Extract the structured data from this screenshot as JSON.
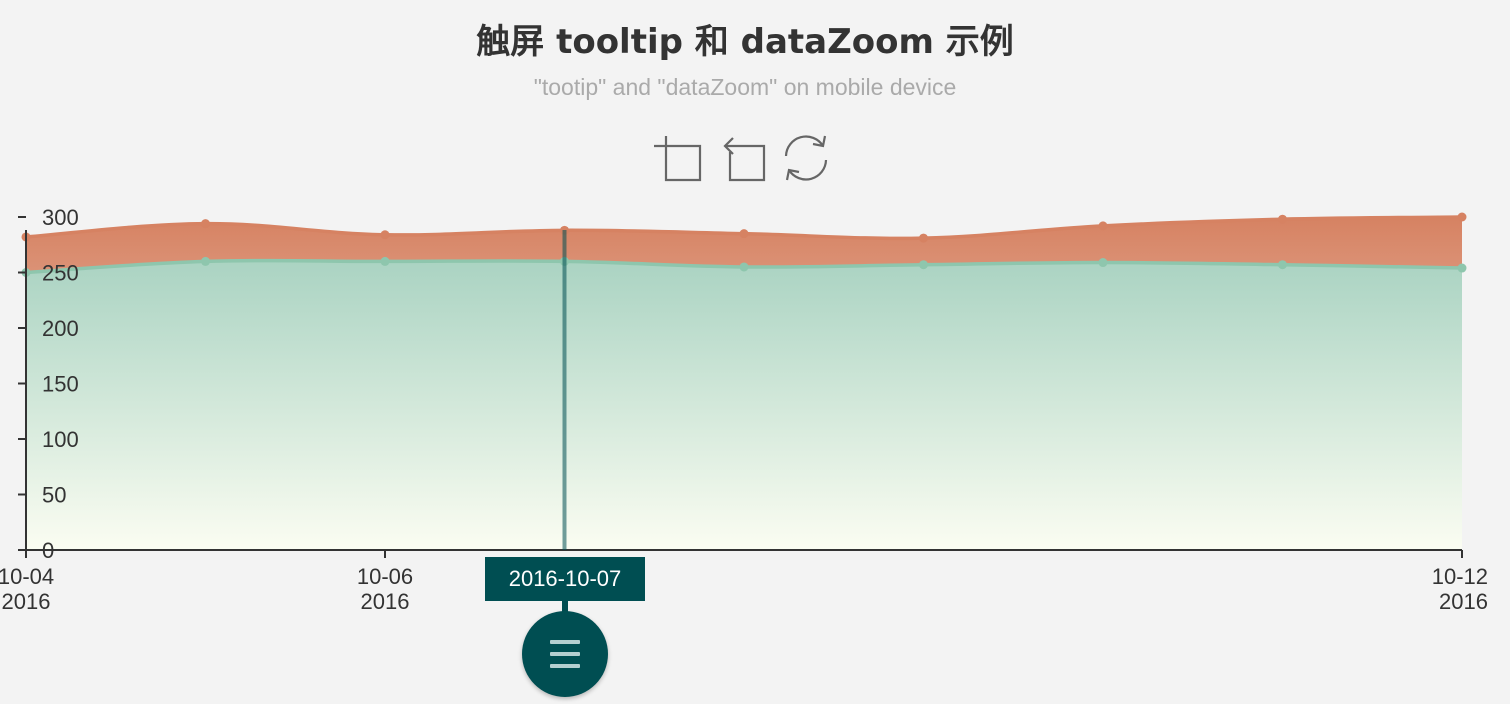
{
  "title": "触屏 tooltip 和 dataZoom 示例",
  "subtitle": "\"tootip\" and \"dataZoom\" on mobile device",
  "toolbox": [
    {
      "name": "data-zoom-icon"
    },
    {
      "name": "zoom-back-icon"
    },
    {
      "name": "restore-icon"
    }
  ],
  "tooltip": {
    "label": "2016-10-07",
    "x": "2016-10-07"
  },
  "colors": {
    "orange_line": "#d68262",
    "green_line": "#8ec6ad",
    "axis_pointer": "#004e52",
    "tooltip_bg": "#004e52"
  },
  "chart_data": {
    "type": "area",
    "title": "触屏 tooltip 和 dataZoom 示例",
    "subtitle": "\"tootip\" and \"dataZoom\" on mobile device",
    "x": [
      "2016-10-04",
      "2016-10-05",
      "2016-10-06",
      "2016-10-07",
      "2016-10-08",
      "2016-10-09",
      "2016-10-10",
      "2016-10-11",
      "2016-10-12"
    ],
    "series": [
      {
        "color": "#8ec6ad",
        "values": [
          250,
          260,
          260,
          260,
          255,
          257,
          259,
          257,
          254
        ]
      },
      {
        "color": "#d68262",
        "values": [
          282,
          294,
          284,
          288,
          285,
          281,
          292,
          298,
          300
        ]
      }
    ],
    "ylim": [
      0,
      300
    ],
    "yticks": [
      0,
      50,
      100,
      150,
      200,
      250,
      300
    ],
    "xticks": [
      {
        "x": "2016-10-04",
        "line1": "10-04",
        "line2": "2016"
      },
      {
        "x": "2016-10-06",
        "line1": "10-06",
        "line2": "2016"
      },
      {
        "x": "2016-10-12",
        "line1": "10-12",
        "line2": "2016"
      }
    ],
    "grid": false,
    "smooth": true
  }
}
